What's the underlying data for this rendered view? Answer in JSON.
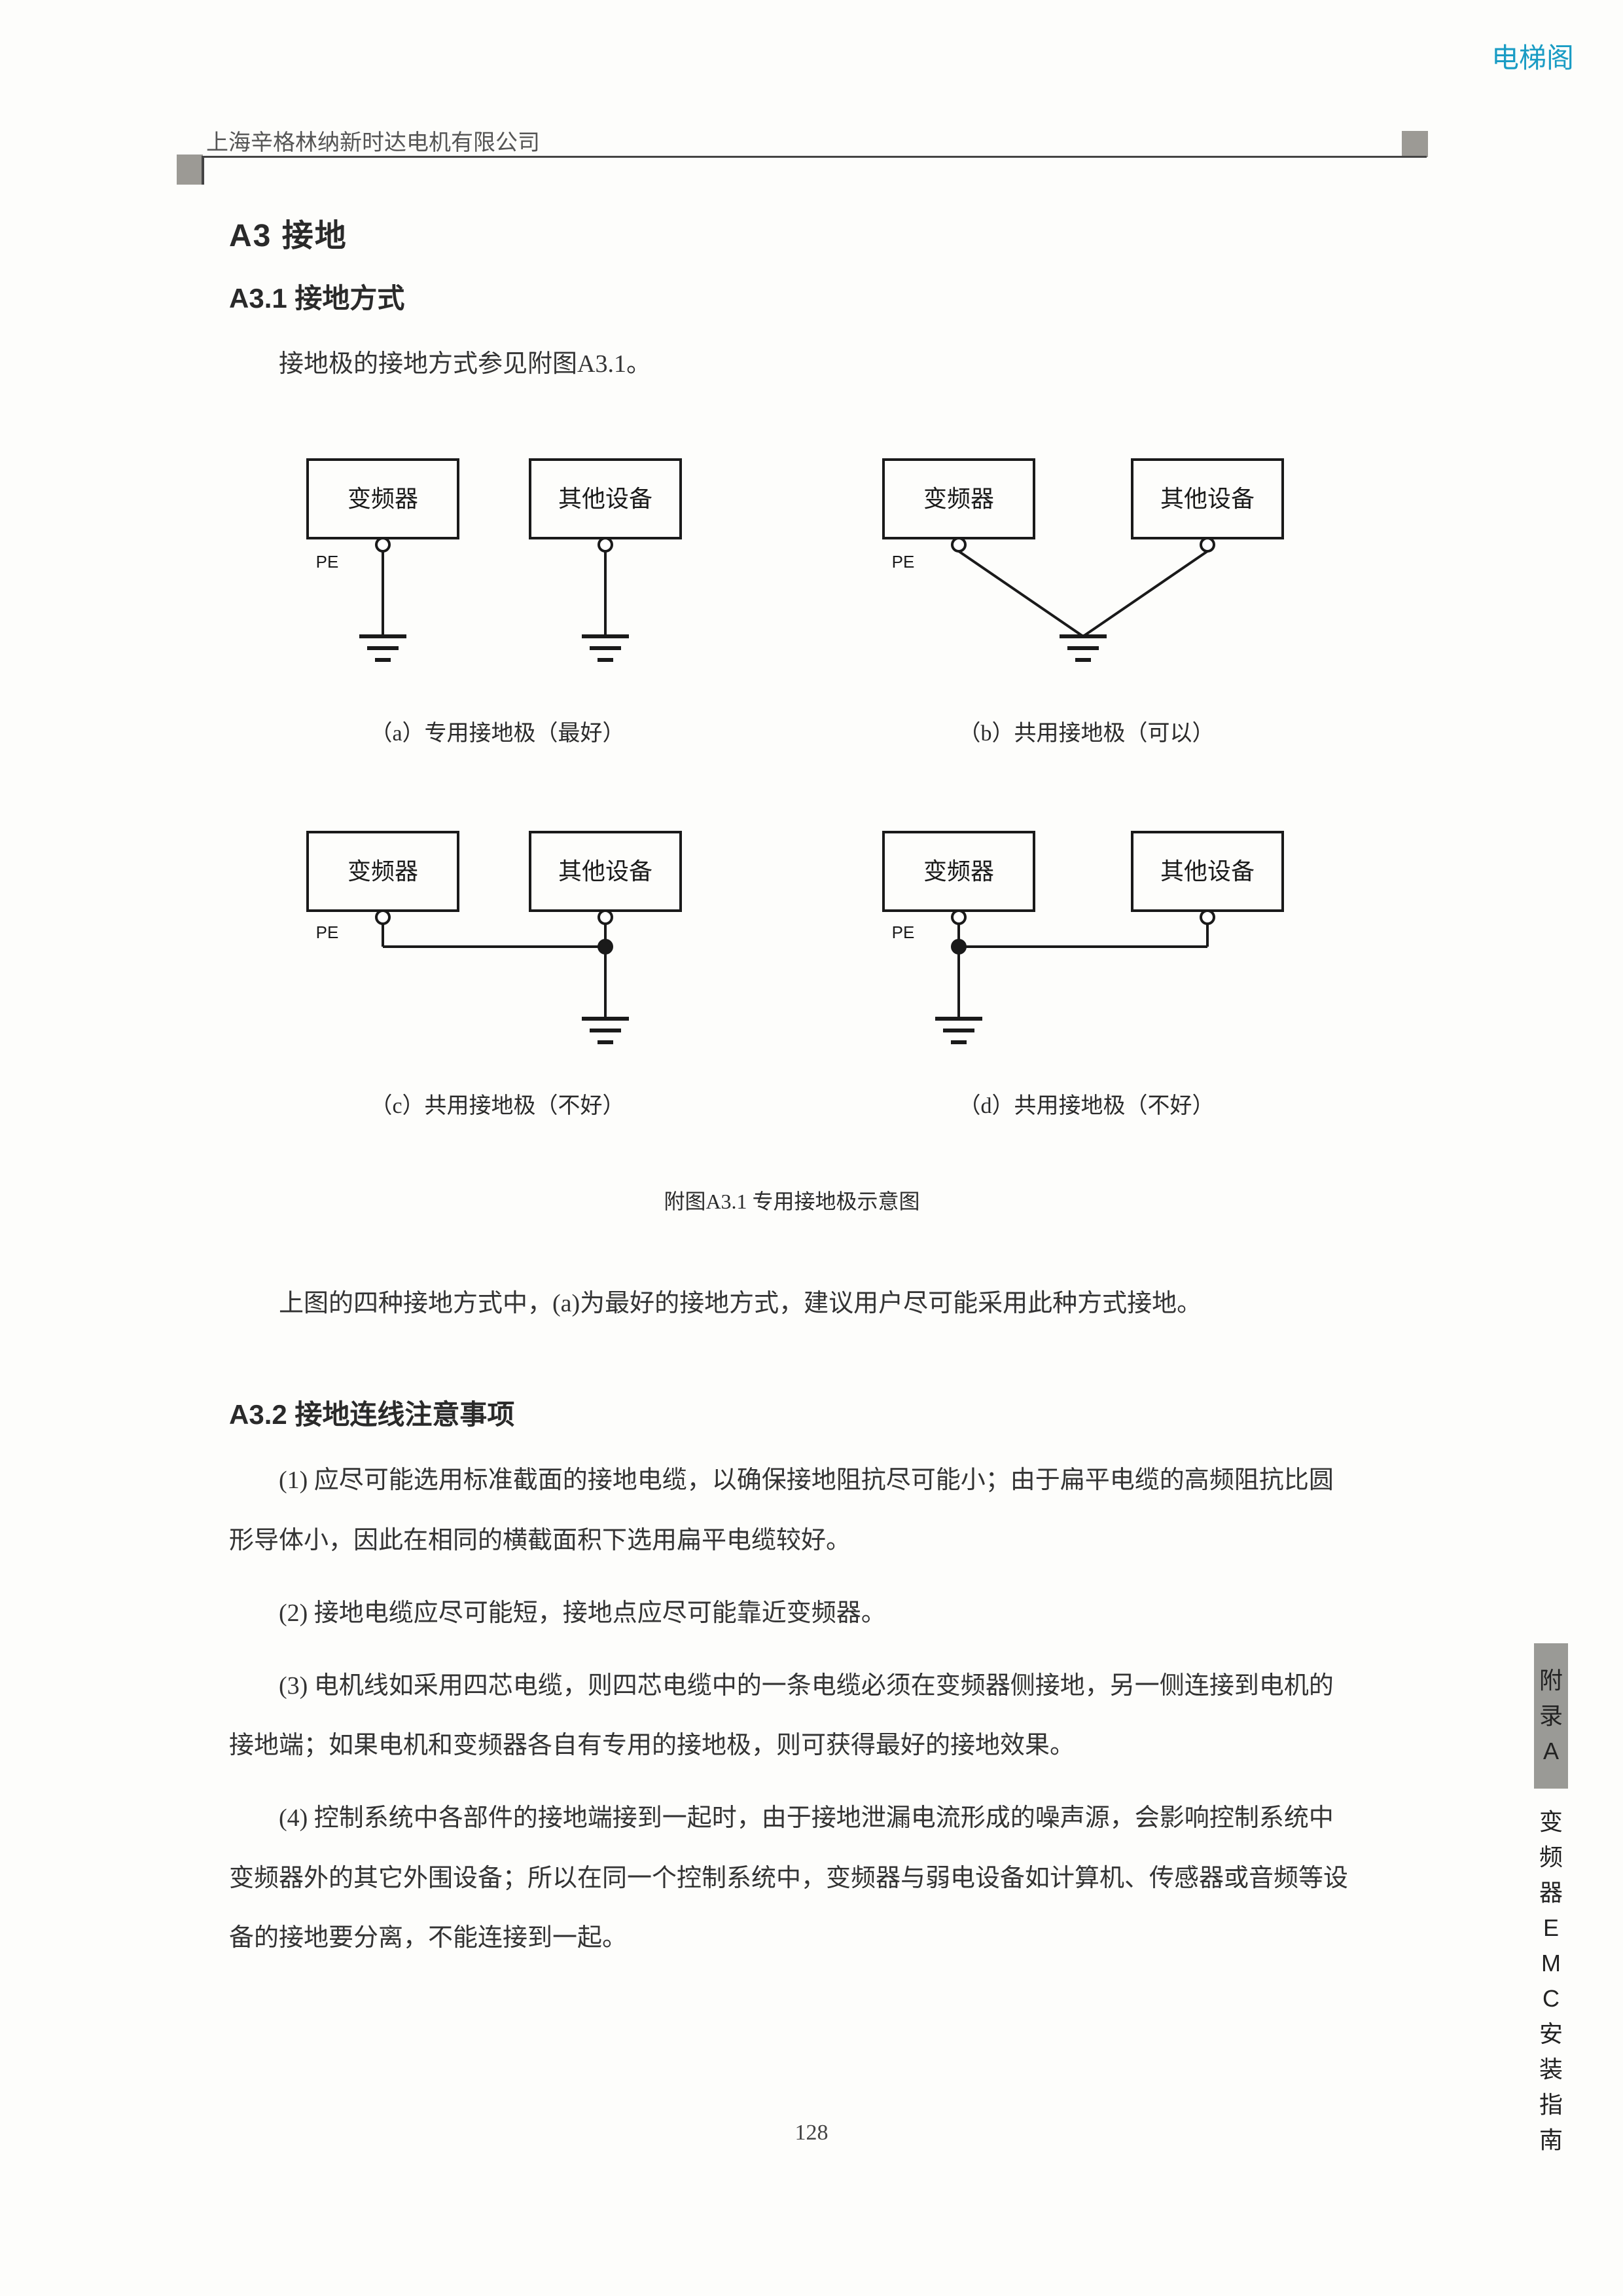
{
  "watermark": "电梯阁",
  "company": "上海辛格林纳新时达电机有限公司",
  "h2": "A3 接地",
  "h3_1": "A3.1 接地方式",
  "intro": "接地极的接地方式参见附图A3.1。",
  "diagrams": {
    "box1": "变频器",
    "box2": "其他设备",
    "pe": "PE",
    "cap_a": "（a）专用接地极（最好）",
    "cap_b": "（b）共用接地极（可以）",
    "cap_c": "（c）共用接地极（不好）",
    "cap_d": "（d）共用接地极（不好）",
    "strokeColor": "#1a1a1a",
    "strokeWidth": 4,
    "textColor": "#1a1a1a",
    "boxFontSize": 36,
    "peFontSize": 26
  },
  "fig_title": "附图A3.1 专用接地极示意图",
  "para_mid": "上图的四种接地方式中，(a)为最好的接地方式，建议用户尽可能采用此种方式接地。",
  "h3_2": "A3.2 接地连线注意事项",
  "item1": "(1) 应尽可能选用标准截面的接地电缆，以确保接地阻抗尽可能小；由于扁平电缆的高频阻抗比圆形导体小，因此在相同的横截面积下选用扁平电缆较好。",
  "item2": "(2) 接地电缆应尽可能短，接地点应尽可能靠近变频器。",
  "item3": "(3) 电机线如采用四芯电缆，则四芯电缆中的一条电缆必须在变频器侧接地，另一侧连接到电机的接地端；如果电机和变频器各自有专用的接地极，则可获得最好的接地效果。",
  "item4": "(4) 控制系统中各部件的接地端接到一起时，由于接地泄漏电流形成的噪声源，会影响控制系统中变频器外的其它外围设备；所以在同一个控制系统中，变频器与弱电设备如计算机、传感器或音频等设备的接地要分离，不能连接到一起。",
  "page_num": "128",
  "side_tab": {
    "segA": [
      "附",
      "录",
      "A"
    ],
    "segB": [
      "变",
      "频",
      "器",
      "E",
      "M",
      "C",
      "安",
      "装",
      "指",
      "南"
    ]
  }
}
